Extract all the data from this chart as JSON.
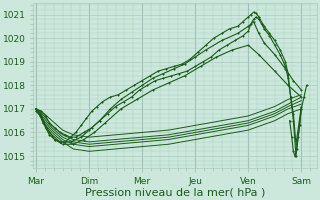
{
  "bg_color": "#cce8dd",
  "grid_color": "#aaccbb",
  "line_color": "#1a5c1a",
  "marker_color": "#1a5c1a",
  "xlabel": "Pression niveau de la mer( hPa )",
  "xlabel_fontsize": 8,
  "tick_label_color": "#1a5c1a",
  "ylim": [
    1014.5,
    1021.5
  ],
  "yticks": [
    1015,
    1016,
    1017,
    1018,
    1019,
    1020,
    1021
  ],
  "xlim": [
    -0.05,
    5.3
  ],
  "day_positions": [
    0,
    1,
    2,
    3,
    4,
    5
  ],
  "day_labels": [
    "Mar",
    "Dim",
    "Mer",
    "Jeu",
    "Ven",
    "Sam"
  ],
  "lines": [
    {
      "x": [
        0.0,
        0.08,
        0.13,
        0.18,
        0.25,
        0.35,
        0.45,
        0.55,
        0.65,
        0.75,
        0.85,
        0.95,
        1.05,
        1.15,
        1.25,
        1.4,
        1.55,
        1.7,
        1.85,
        2.0,
        2.15,
        2.3,
        2.45,
        2.6,
        2.75,
        2.9,
        3.05,
        3.2,
        3.35,
        3.5,
        3.65,
        3.8,
        3.9,
        4.0,
        4.05,
        4.1,
        4.15,
        4.2,
        4.3,
        4.4,
        4.5,
        4.6,
        4.7,
        4.75,
        4.8,
        4.85,
        4.9,
        5.0
      ],
      "y": [
        1017.0,
        1016.8,
        1016.5,
        1016.2,
        1015.9,
        1015.7,
        1015.6,
        1015.6,
        1015.8,
        1016.0,
        1016.3,
        1016.6,
        1016.9,
        1017.1,
        1017.3,
        1017.5,
        1017.6,
        1017.8,
        1018.0,
        1018.2,
        1018.4,
        1018.6,
        1018.7,
        1018.8,
        1018.9,
        1019.1,
        1019.4,
        1019.7,
        1020.0,
        1020.2,
        1020.4,
        1020.5,
        1020.7,
        1020.9,
        1021.0,
        1021.1,
        1021.05,
        1020.9,
        1020.5,
        1020.2,
        1019.9,
        1019.5,
        1019.0,
        1018.5,
        1017.5,
        1016.5,
        1015.0,
        1017.0
      ],
      "marker": "+"
    },
    {
      "x": [
        0.0,
        0.08,
        0.13,
        0.25,
        0.45,
        0.65,
        0.85,
        1.0,
        1.2,
        1.4,
        1.6,
        1.8,
        2.0,
        2.2,
        2.4,
        2.6,
        2.8,
        3.0,
        3.2,
        3.5,
        3.8,
        4.0,
        4.1,
        4.2,
        4.3,
        4.5,
        4.7,
        4.85,
        5.0
      ],
      "y": [
        1016.9,
        1016.7,
        1016.4,
        1016.0,
        1015.6,
        1015.6,
        1015.8,
        1016.1,
        1016.5,
        1017.0,
        1017.4,
        1017.7,
        1018.0,
        1018.3,
        1018.5,
        1018.7,
        1018.9,
        1019.2,
        1019.5,
        1019.9,
        1020.2,
        1020.5,
        1020.7,
        1020.2,
        1019.8,
        1019.3,
        1018.7,
        1018.2,
        1017.8
      ],
      "marker": "+"
    },
    {
      "x": [
        0.0,
        0.1,
        0.2,
        0.35,
        0.5,
        0.7,
        0.9,
        1.1,
        1.3,
        1.6,
        1.9,
        2.2,
        2.5,
        2.8,
        3.1,
        3.4,
        3.7,
        4.0,
        4.2,
        4.5,
        4.75,
        5.0
      ],
      "y": [
        1017.0,
        1016.7,
        1016.2,
        1015.7,
        1015.5,
        1015.5,
        1015.7,
        1016.0,
        1016.4,
        1017.0,
        1017.4,
        1017.8,
        1018.1,
        1018.4,
        1018.8,
        1019.2,
        1019.5,
        1019.7,
        1019.3,
        1018.6,
        1018.0,
        1017.5
      ],
      "marker": "+"
    },
    {
      "x": [
        0.0,
        0.1,
        0.18,
        0.25,
        0.35,
        0.45,
        0.55,
        0.65,
        0.75,
        0.9,
        1.05,
        1.2,
        1.35,
        1.5,
        1.65,
        1.8,
        1.95,
        2.1,
        2.25,
        2.4,
        2.55,
        2.7,
        2.85,
        3.0,
        3.15,
        3.3,
        3.45,
        3.6,
        3.75,
        3.9,
        4.0,
        4.05,
        4.1,
        4.15,
        4.2,
        4.25,
        4.3,
        4.4,
        4.5,
        4.6,
        4.7,
        4.75,
        4.8,
        4.85,
        4.9,
        5.0
      ],
      "y": [
        1017.0,
        1016.9,
        1016.7,
        1016.4,
        1016.2,
        1016.0,
        1015.9,
        1015.8,
        1015.8,
        1016.0,
        1016.2,
        1016.5,
        1016.8,
        1017.1,
        1017.3,
        1017.5,
        1017.8,
        1018.0,
        1018.2,
        1018.3,
        1018.4,
        1018.5,
        1018.6,
        1018.8,
        1019.0,
        1019.2,
        1019.5,
        1019.7,
        1019.9,
        1020.1,
        1020.3,
        1020.6,
        1020.8,
        1020.9,
        1020.8,
        1020.6,
        1020.4,
        1020.1,
        1019.7,
        1019.3,
        1018.8,
        1018.3,
        1017.5,
        1016.8,
        1015.5,
        1017.1
      ],
      "marker": "+"
    },
    {
      "x": [
        0.0,
        0.15,
        0.3,
        0.5,
        0.7,
        1.0,
        1.5,
        2.0,
        2.5,
        3.0,
        3.5,
        4.0,
        4.5,
        4.75,
        5.0
      ],
      "y": [
        1017.0,
        1016.4,
        1016.0,
        1015.6,
        1015.3,
        1015.2,
        1015.3,
        1015.4,
        1015.5,
        1015.7,
        1015.9,
        1016.1,
        1016.5,
        1016.8,
        1017.0
      ],
      "marker": null
    },
    {
      "x": [
        0.0,
        0.15,
        0.3,
        0.5,
        0.7,
        1.0,
        1.5,
        2.0,
        2.5,
        3.0,
        3.5,
        4.0,
        4.5,
        4.75,
        5.0
      ],
      "y": [
        1017.0,
        1016.5,
        1016.1,
        1015.7,
        1015.5,
        1015.4,
        1015.5,
        1015.6,
        1015.7,
        1015.9,
        1016.1,
        1016.3,
        1016.7,
        1017.0,
        1017.2
      ],
      "marker": null
    },
    {
      "x": [
        0.0,
        0.15,
        0.3,
        0.5,
        0.7,
        1.0,
        1.5,
        2.0,
        2.5,
        3.0,
        3.5,
        4.0,
        4.5,
        4.75,
        5.0
      ],
      "y": [
        1017.0,
        1016.6,
        1016.2,
        1015.8,
        1015.6,
        1015.5,
        1015.6,
        1015.7,
        1015.8,
        1016.0,
        1016.2,
        1016.4,
        1016.8,
        1017.1,
        1017.35
      ],
      "marker": null
    },
    {
      "x": [
        0.0,
        0.15,
        0.3,
        0.5,
        0.7,
        1.0,
        1.5,
        2.0,
        2.5,
        3.0,
        3.5,
        4.0,
        4.5,
        4.75,
        5.0
      ],
      "y": [
        1017.0,
        1016.7,
        1016.3,
        1015.9,
        1015.7,
        1015.6,
        1015.7,
        1015.8,
        1015.9,
        1016.1,
        1016.3,
        1016.5,
        1016.9,
        1017.2,
        1017.5
      ],
      "marker": null
    },
    {
      "x": [
        0.0,
        0.15,
        0.3,
        0.5,
        0.7,
        1.0,
        1.5,
        2.0,
        2.5,
        3.0,
        3.5,
        4.0,
        4.5,
        4.75,
        5.0
      ],
      "y": [
        1017.0,
        1016.8,
        1016.5,
        1016.1,
        1015.9,
        1015.8,
        1015.9,
        1016.0,
        1016.1,
        1016.3,
        1016.5,
        1016.7,
        1017.1,
        1017.4,
        1017.6
      ],
      "marker": null
    },
    {
      "x": [
        4.78,
        4.82,
        4.85,
        4.88,
        4.91,
        4.94,
        4.97,
        5.0,
        5.05,
        5.1
      ],
      "y": [
        1016.5,
        1015.8,
        1015.2,
        1015.0,
        1015.3,
        1015.8,
        1016.3,
        1017.0,
        1017.5,
        1018.0
      ],
      "marker": "+"
    }
  ]
}
